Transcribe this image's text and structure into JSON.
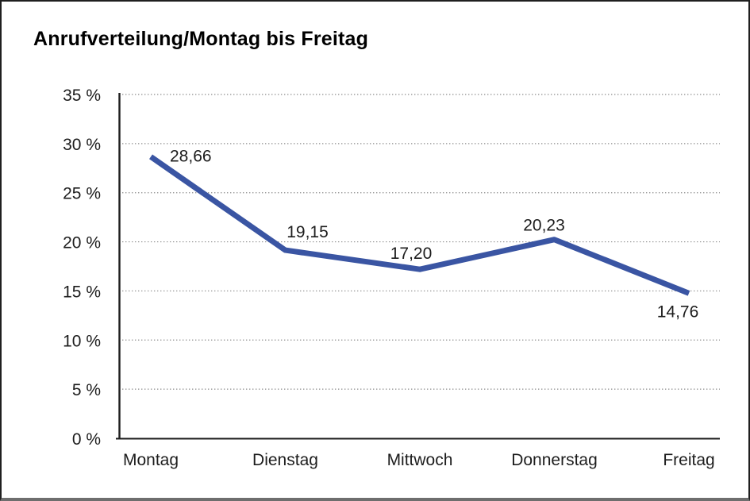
{
  "title": "Anrufverteilung/Montag bis Freitag",
  "colors": {
    "line": "#3A55A3",
    "text": "#1d1d1d",
    "grid": "#8c8c8c",
    "axis": "#1d1d1d",
    "background": "#ffffff",
    "border": "#1f1f1f"
  },
  "chart_data": {
    "type": "line",
    "title": "Anrufverteilung/Montag bis Freitag",
    "categories": [
      "Montag",
      "Dienstag",
      "Mittwoch",
      "Donnerstag",
      "Freitag"
    ],
    "values": [
      28.66,
      19.15,
      17.2,
      20.23,
      14.76
    ],
    "value_labels": [
      "28,66",
      "19,15",
      "17,20",
      "20,23",
      "14,76"
    ],
    "xlabel": "",
    "ylabel": "",
    "ylim": [
      0,
      35
    ],
    "y_tick_step": 5,
    "y_tick_labels": [
      "0 %",
      "5 %",
      "10 %",
      "15 %",
      "20 %",
      "25 %",
      "30 %",
      "35 %"
    ],
    "grid": "horizontal-dotted",
    "legend": "none",
    "line_color": "#3A55A3",
    "line_width": 7
  }
}
